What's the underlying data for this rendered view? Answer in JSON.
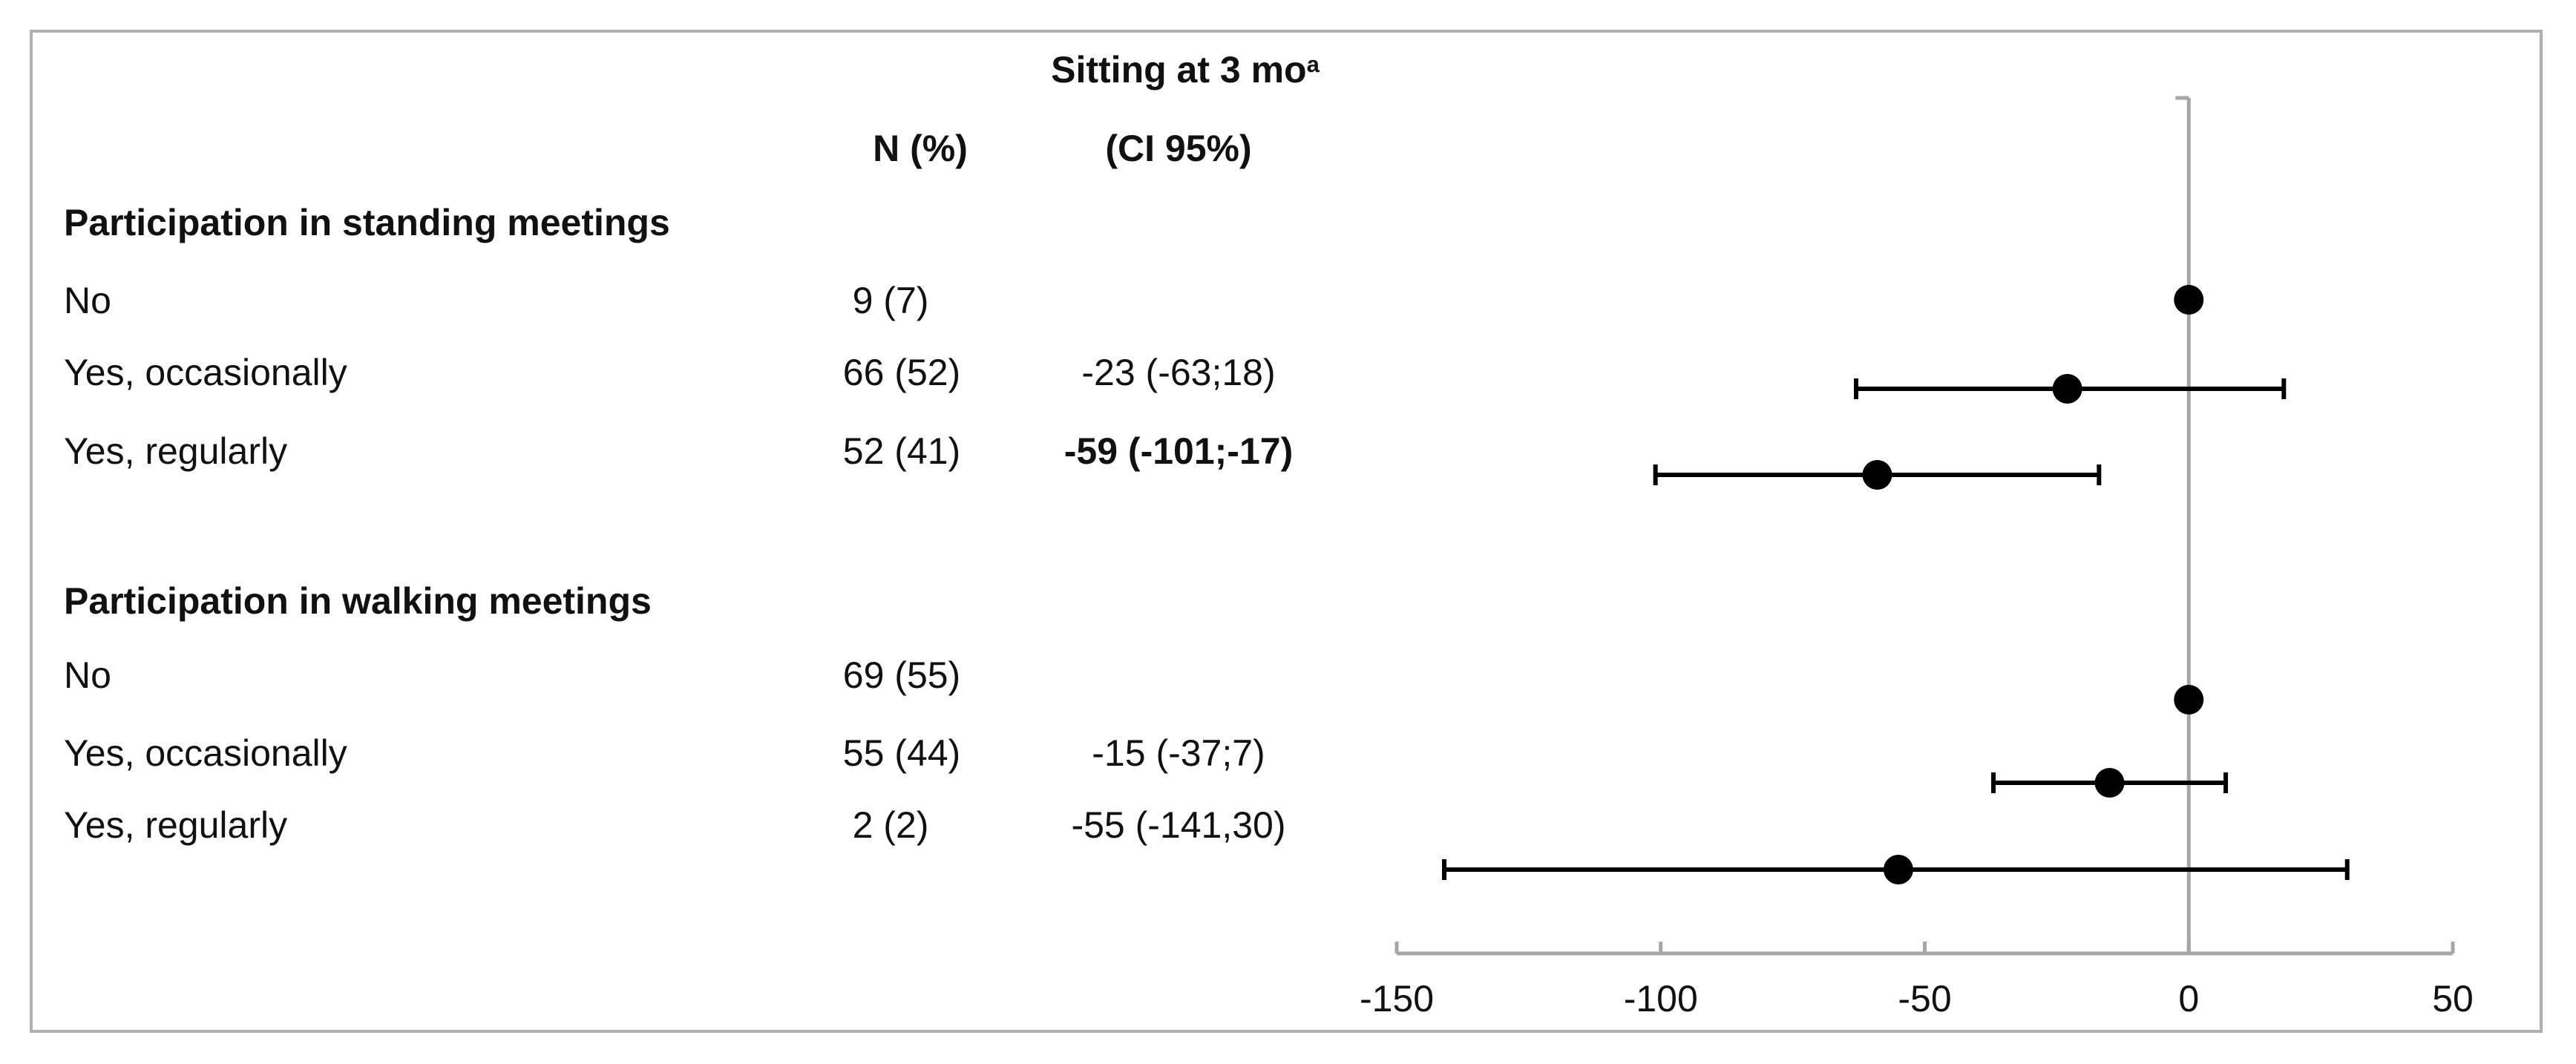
{
  "chart_data": {
    "type": "forest",
    "title": "Sitting at 3 mo",
    "title_superscript": "a",
    "column_headers": {
      "n": "N (%)",
      "ci": "(CI 95%)"
    },
    "groups": [
      {
        "label": "Participation in standing meetings",
        "rows": [
          {
            "label": "No",
            "n": "9 (7)",
            "ci_text": "",
            "bold": false,
            "estimate": 0,
            "lower": null,
            "upper": null
          },
          {
            "label": "Yes, occasionally",
            "n": "66 (52)",
            "ci_text": "-23 (-63;18)",
            "bold": false,
            "estimate": -23,
            "lower": -63,
            "upper": 18
          },
          {
            "label": "Yes, regularly",
            "n": "52 (41)",
            "ci_text": "-59 (-101;-17)",
            "bold": true,
            "estimate": -59,
            "lower": -101,
            "upper": -17
          }
        ]
      },
      {
        "label": "Participation in walking meetings",
        "rows": [
          {
            "label": "No",
            "n": "69 (55)",
            "ci_text": "",
            "bold": false,
            "estimate": 0,
            "lower": null,
            "upper": null
          },
          {
            "label": "Yes, occasionally",
            "n": "55 (44)",
            "ci_text": "-15 (-37;7)",
            "bold": false,
            "estimate": -15,
            "lower": -37,
            "upper": 7
          },
          {
            "label": "Yes, regularly",
            "n": "2 (2)",
            "ci_text": "-55 (-141,30)",
            "bold": false,
            "estimate": -55,
            "lower": -141,
            "upper": 30
          }
        ]
      }
    ],
    "x_axis": {
      "xlim": [
        -150,
        50
      ],
      "ticks": [
        -150,
        -100,
        -50,
        0,
        50
      ],
      "tick_labels": [
        "-150",
        "-100",
        "-50",
        "0",
        "50"
      ],
      "reference_line": 0
    },
    "grid": false,
    "colors": {
      "marker": "#000000",
      "axis": "#a6a6a6",
      "frame": "#b0b0b0",
      "text": "#111111"
    }
  }
}
